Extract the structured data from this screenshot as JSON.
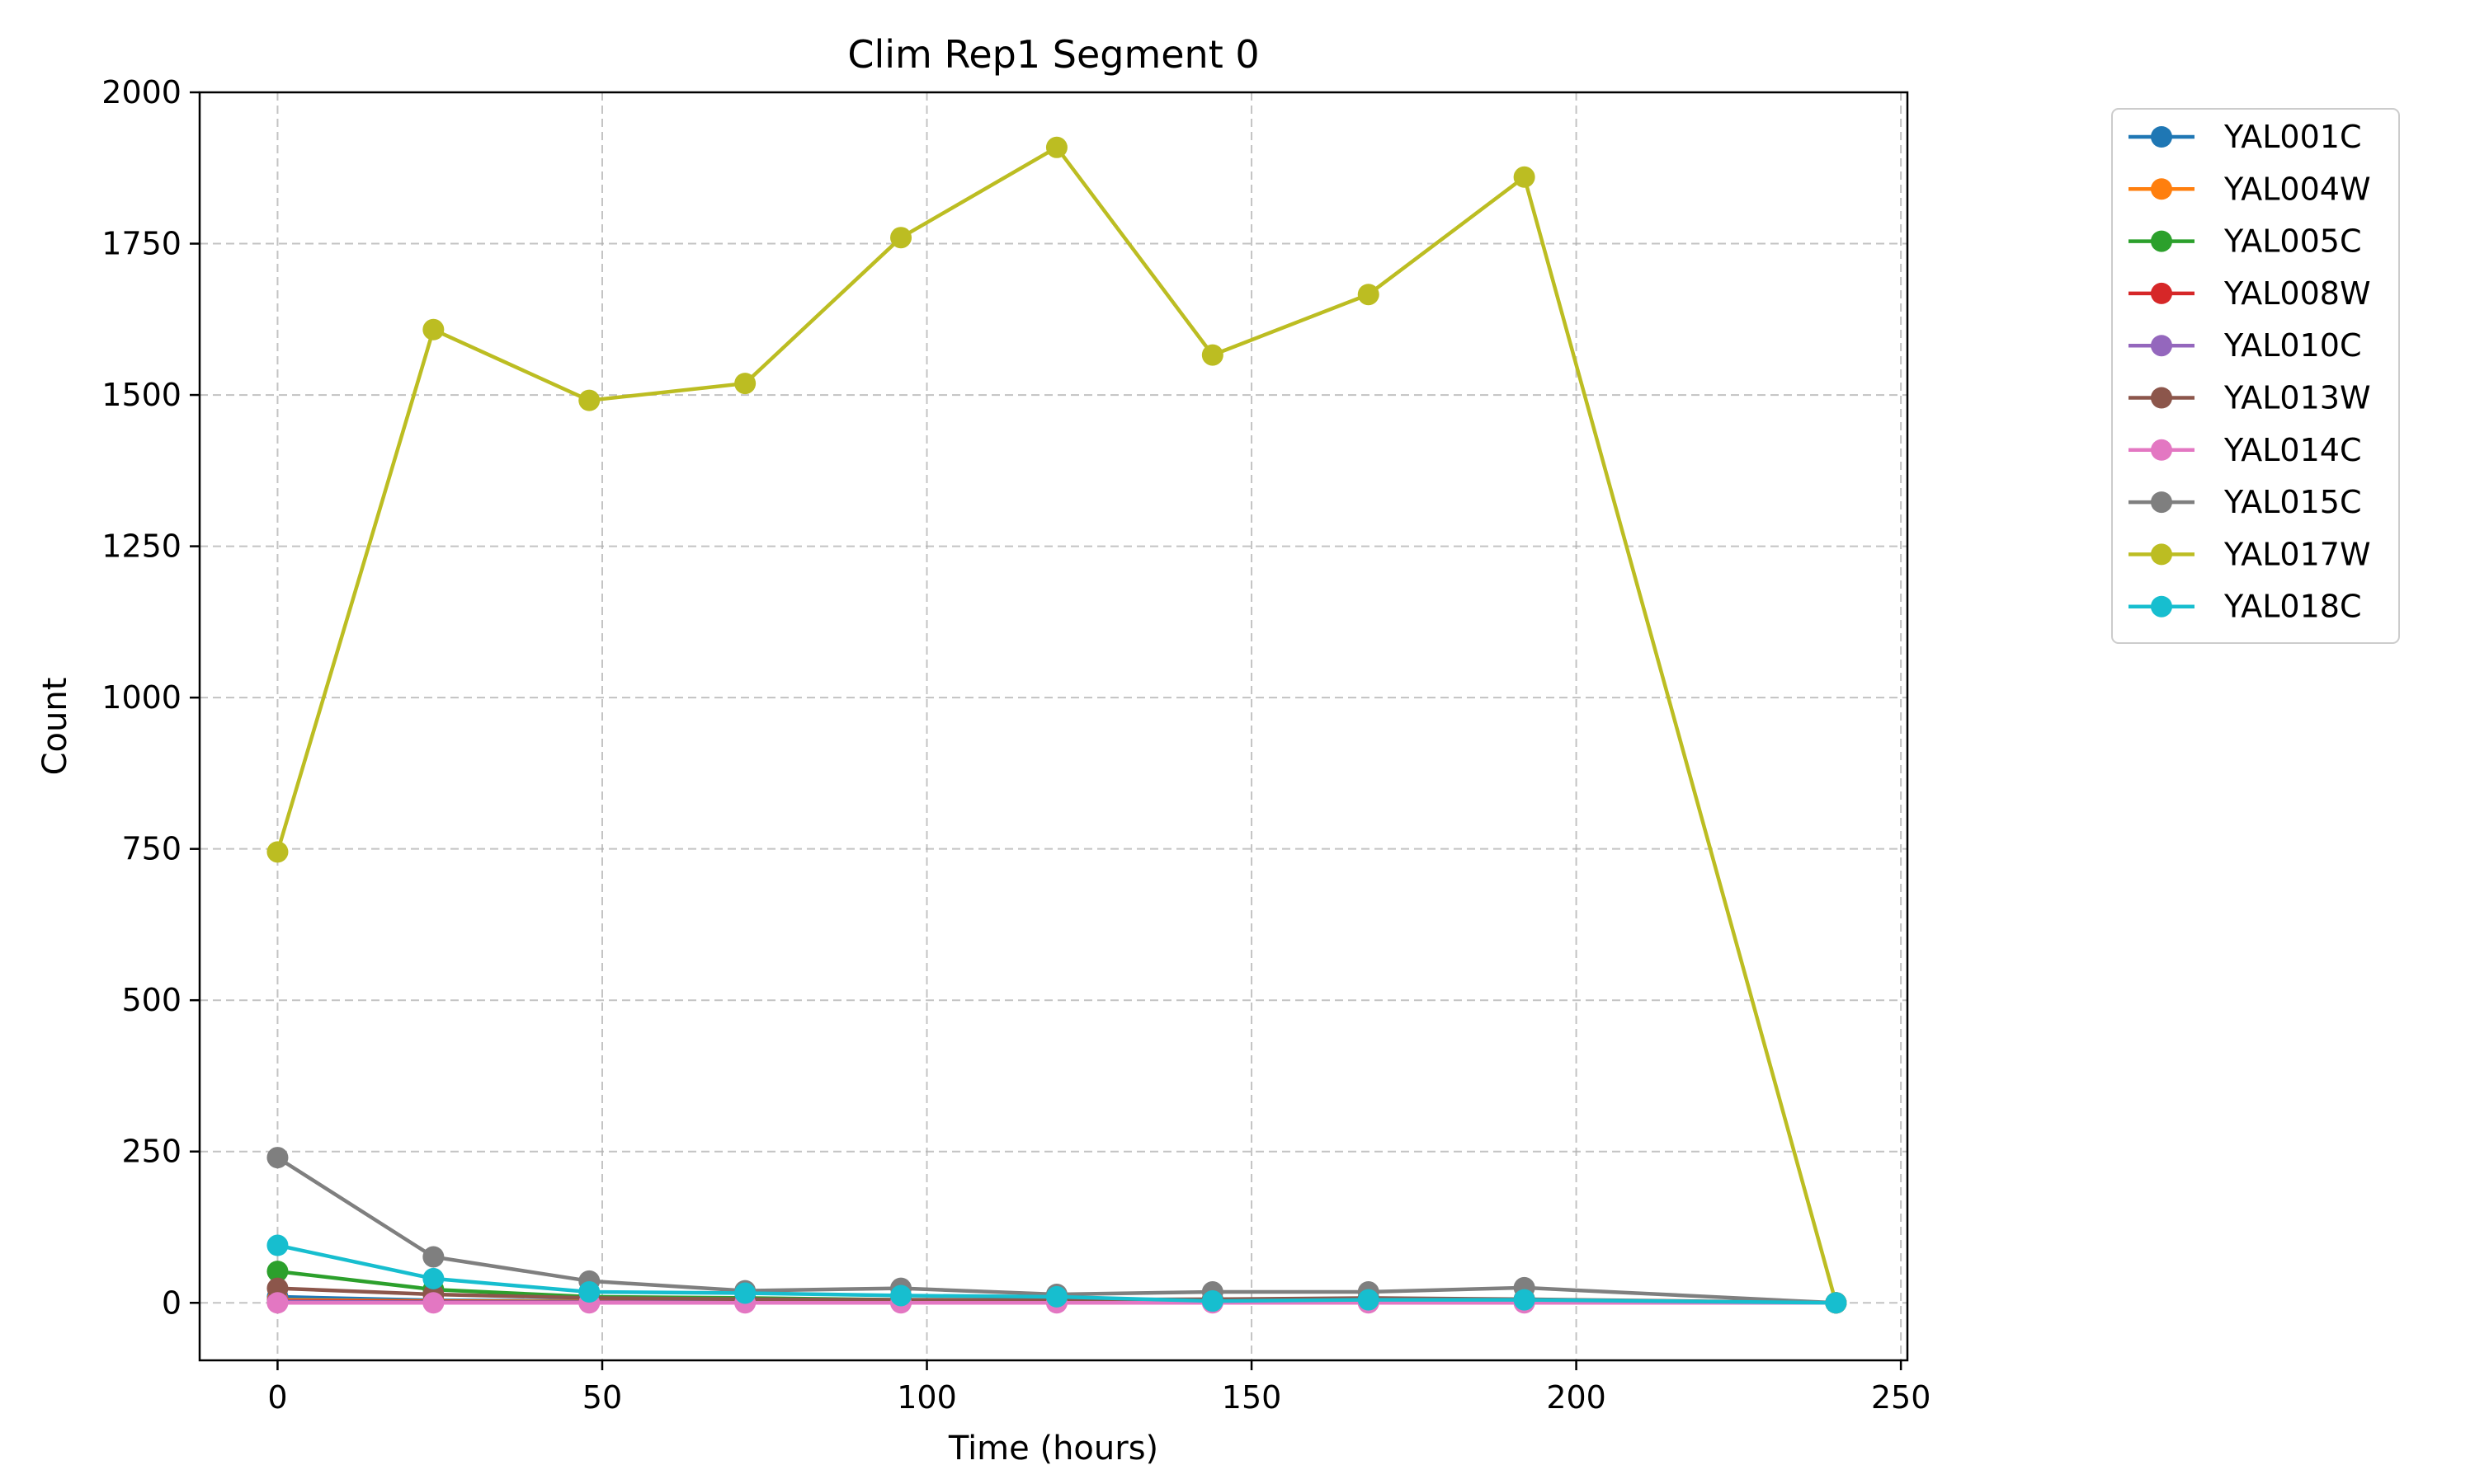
{
  "chart_data": {
    "type": "line",
    "title": "Clim Rep1 Segment 0",
    "xlabel": "Time (hours)",
    "ylabel": "Count",
    "xlim": [
      -12,
      251
    ],
    "ylim": [
      -95,
      2000
    ],
    "xticks": [
      0,
      50,
      100,
      150,
      200,
      250
    ],
    "yticks": [
      0,
      250,
      500,
      750,
      1000,
      1250,
      1500,
      1750,
      2000
    ],
    "grid": true,
    "legend_position": "outside-right-top",
    "x": [
      0,
      24,
      48,
      72,
      96,
      120,
      144,
      168,
      192,
      240
    ],
    "series": [
      {
        "name": "YAL001C",
        "color": "#1f77b4",
        "values": [
          10,
          4,
          3,
          2,
          2,
          2,
          1,
          1,
          2,
          0
        ]
      },
      {
        "name": "YAL004W",
        "color": "#ff7f0e",
        "values": [
          5,
          3,
          2,
          1,
          1,
          1,
          1,
          1,
          1,
          0
        ]
      },
      {
        "name": "YAL005C",
        "color": "#2ca02c",
        "values": [
          52,
          22,
          10,
          8,
          5,
          5,
          3,
          4,
          5,
          0
        ]
      },
      {
        "name": "YAL008W",
        "color": "#d62728",
        "values": [
          3,
          2,
          1,
          1,
          1,
          1,
          1,
          1,
          1,
          0
        ]
      },
      {
        "name": "YAL010C",
        "color": "#9467bd",
        "values": [
          2,
          1,
          1,
          1,
          1,
          1,
          1,
          1,
          1,
          0
        ]
      },
      {
        "name": "YAL013W",
        "color": "#8c564b",
        "values": [
          24,
          14,
          8,
          6,
          5,
          5,
          6,
          8,
          6,
          0
        ]
      },
      {
        "name": "YAL014C",
        "color": "#e377c2",
        "values": [
          0,
          0,
          0,
          0,
          0,
          0,
          0,
          0,
          0,
          0
        ]
      },
      {
        "name": "YAL015C",
        "color": "#7f7f7f",
        "values": [
          240,
          76,
          36,
          20,
          24,
          14,
          18,
          18,
          25,
          0
        ]
      },
      {
        "name": "YAL017W",
        "color": "#bcbd22",
        "values": [
          745,
          1608,
          1491,
          1519,
          1760,
          1909,
          1566,
          1666,
          1860,
          0
        ]
      },
      {
        "name": "YAL018C",
        "color": "#17becf",
        "values": [
          95,
          40,
          18,
          16,
          12,
          10,
          3,
          5,
          5,
          0
        ]
      }
    ]
  }
}
